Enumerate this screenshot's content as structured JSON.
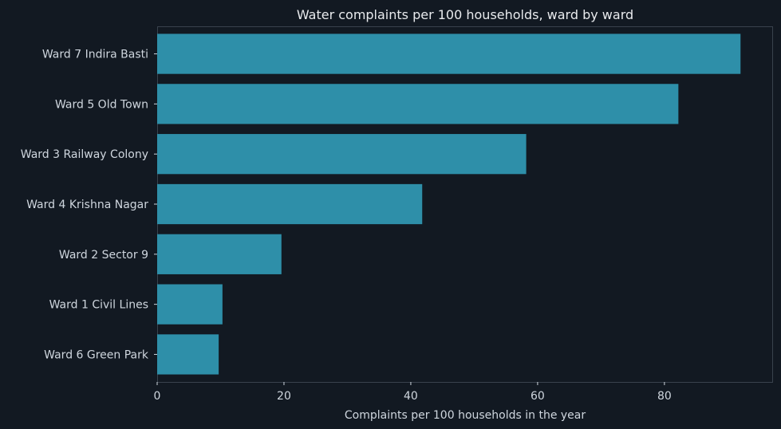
{
  "chart_data": {
    "type": "bar",
    "orientation": "horizontal",
    "title": "Water complaints per 100 households, ward by ward",
    "xlabel": "Complaints per 100 households in the year",
    "ylabel": "",
    "categories": [
      "Ward 7 Indira Basti",
      "Ward 5 Old Town",
      "Ward 3 Railway Colony",
      "Ward 4 Krishna Nagar",
      "Ward 2 Sector 9",
      "Ward 1 Civil Lines",
      "Ward 6 Green Park"
    ],
    "values": [
      92,
      82.2,
      58.2,
      41.8,
      19.6,
      10.3,
      9.7
    ],
    "xlim": [
      0,
      97
    ],
    "xticks": [
      0,
      20,
      40,
      60,
      80
    ],
    "grid": false,
    "colors": {
      "background": "#121922",
      "bar": "#2e8fa9",
      "axis": "#39424d",
      "text": "#cfd6de",
      "title": "#e8eaed"
    }
  }
}
